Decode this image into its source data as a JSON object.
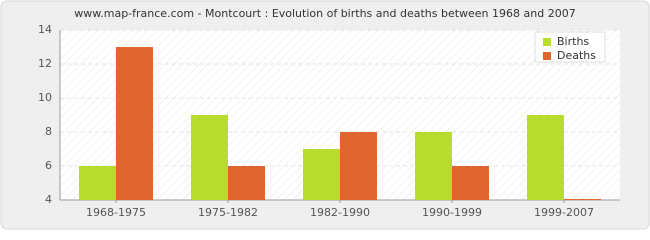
{
  "chart_data": {
    "type": "bar",
    "title": "www.map-france.com - Montcourt : Evolution of births and deaths between 1968 and 2007",
    "categories": [
      "1968-1975",
      "1975-1982",
      "1982-1990",
      "1990-1999",
      "1999-2007"
    ],
    "series": [
      {
        "name": "Births",
        "color": "#b8dc2e",
        "values": [
          6,
          9,
          7,
          8,
          9
        ]
      },
      {
        "name": "Deaths",
        "color": "#e0662f",
        "values": [
          13,
          6,
          8,
          6,
          4
        ]
      }
    ],
    "ylim": [
      4,
      14
    ],
    "yticks": [
      4,
      6,
      8,
      10,
      12,
      14
    ],
    "grid": true,
    "legend": "top-right"
  }
}
